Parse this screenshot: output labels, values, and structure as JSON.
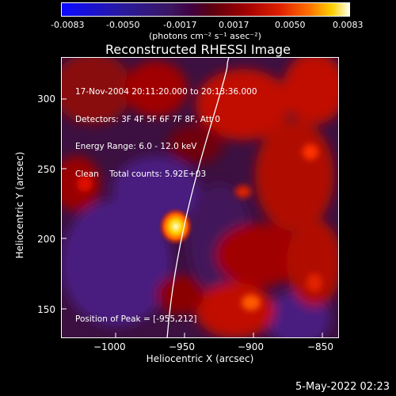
{
  "colorbar": {
    "ticks": [
      "-0.0083",
      "-0.0050",
      "-0.0017",
      "0.0017",
      "0.0050",
      "0.0083"
    ],
    "units": "(photons cm⁻² s⁻¹ asec⁻²)",
    "colors": [
      "#0a0aff",
      "#3a1660",
      "#a00000",
      "#ff7000",
      "#ffffe8"
    ]
  },
  "title": "Reconstructed RHESSI Image",
  "info": {
    "time_range": "17-Nov-2004 20:11:20.000 to 20:13:36.000",
    "detectors": "Detectors: 3F 4F 5F 6F 7F 8F, Att 0",
    "energy": "Energy Range: 6.0 - 12.0 keV",
    "clean": "Clean    Total counts: 5.92E+03"
  },
  "peak_label": "Position of Peak = [-955,212]",
  "axes": {
    "xlabel": "Heliocentric X (arcsec)",
    "ylabel": "Heliocentric Y (arcsec)",
    "xticks": [
      "−1000",
      "−950",
      "−900",
      "−850"
    ],
    "yticks": [
      "300",
      "250",
      "200",
      "150"
    ]
  },
  "timestamp": "5-May-2022 02:23"
}
